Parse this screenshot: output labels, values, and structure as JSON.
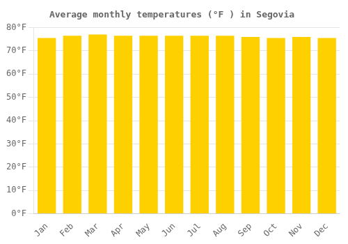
{
  "chart_data": {
    "type": "bar",
    "title": "Average monthly temperatures (°F ) in Segovia",
    "categories": [
      "Jan",
      "Feb",
      "Mar",
      "Apr",
      "May",
      "Jun",
      "Jul",
      "Aug",
      "Sep",
      "Oct",
      "Nov",
      "Dec"
    ],
    "values": [
      75.5,
      76.5,
      77.0,
      76.5,
      76.5,
      76.5,
      76.5,
      76.5,
      76.0,
      75.5,
      76.0,
      75.5
    ],
    "color": "#FFD000",
    "ylim": [
      0,
      80
    ],
    "yticks": [
      {
        "value": 0,
        "label": "0°F"
      },
      {
        "value": 10,
        "label": "10°F"
      },
      {
        "value": 20,
        "label": "20°F"
      },
      {
        "value": 30,
        "label": "30°F"
      },
      {
        "value": 40,
        "label": "40°F"
      },
      {
        "value": 50,
        "label": "50°F"
      },
      {
        "value": 60,
        "label": "60°F"
      },
      {
        "value": 70,
        "label": "70°F"
      },
      {
        "value": 80,
        "label": "80°F"
      }
    ],
    "grid": true
  }
}
